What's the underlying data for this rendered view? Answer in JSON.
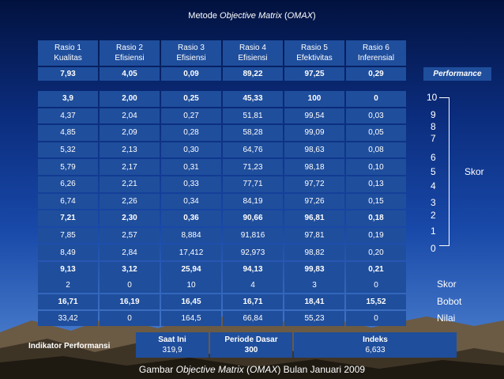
{
  "title_prefix": "Metode ",
  "title_italic": "Objective Matrix",
  "title_mid": " (",
  "title_abbr": "OMAX",
  "title_suffix": ")",
  "headers": [
    {
      "line1": "Rasio 1",
      "line2": "Kualitas"
    },
    {
      "line1": "Rasio 2",
      "line2": "Efisiensi"
    },
    {
      "line1": "Rasio 3",
      "line2": "Efisiensi"
    },
    {
      "line1": "Rasio 4",
      "line2": "Efisiensi"
    },
    {
      "line1": "Rasio 5",
      "line2": "Efektivitas"
    },
    {
      "line1": "Rasio 6",
      "line2": "Inferensial"
    }
  ],
  "performance": [
    "7,93",
    "4,05",
    "0,09",
    "89,22",
    "97,25",
    "0,29"
  ],
  "performance_label": "Performance",
  "score_rows": [
    {
      "bold": true,
      "values": [
        "3,9",
        "2,00",
        "0,25",
        "45,33",
        "100",
        "0"
      ]
    },
    {
      "bold": false,
      "values": [
        "4,37",
        "2,04",
        "0,27",
        "51,81",
        "99,54",
        "0,03"
      ]
    },
    {
      "bold": false,
      "values": [
        "4,85",
        "2,09",
        "0,28",
        "58,28",
        "99,09",
        "0,05"
      ]
    },
    {
      "bold": false,
      "values": [
        "5,32",
        "2,13",
        "0,30",
        "64,76",
        "98,63",
        "0,08"
      ]
    },
    {
      "bold": false,
      "values": [
        "5,79",
        "2,17",
        "0,31",
        "71,23",
        "98,18",
        "0,10"
      ]
    },
    {
      "bold": false,
      "values": [
        "6,26",
        "2,21",
        "0,33",
        "77,71",
        "97,72",
        "0,13"
      ]
    },
    {
      "bold": false,
      "values": [
        "6,74",
        "2,26",
        "0,34",
        "84,19",
        "97,26",
        "0,15"
      ]
    },
    {
      "bold": true,
      "values": [
        "7,21",
        "2,30",
        "0,36",
        "90,66",
        "96,81",
        "0,18"
      ]
    },
    {
      "bold": false,
      "values": [
        "7,85",
        "2,57",
        "8,884",
        "91,816",
        "97,81",
        "0,19"
      ]
    },
    {
      "bold": false,
      "values": [
        "8,49",
        "2,84",
        "17,412",
        "92,973",
        "98,82",
        "0,20"
      ]
    },
    {
      "bold": true,
      "values": [
        "9,13",
        "3,12",
        "25,94",
        "94,13",
        "99,83",
        "0,21"
      ]
    }
  ],
  "score_scale": [
    "10",
    "9",
    "8",
    "7",
    "6",
    "5",
    "4",
    "3",
    "2",
    "1",
    "0"
  ],
  "skor_label": "Skor",
  "bottom_rows": [
    {
      "label": "Skor",
      "bold": false,
      "values": [
        "2",
        "0",
        "10",
        "4",
        "3",
        "0"
      ]
    },
    {
      "label": "Bobot",
      "bold": true,
      "values": [
        "16,71",
        "16,19",
        "16,45",
        "16,71",
        "18,41",
        "15,52"
      ]
    },
    {
      "label": "Nilai",
      "bold": false,
      "values": [
        "33,42",
        "0",
        "164,5",
        "66,84",
        "55,23",
        "0"
      ]
    }
  ],
  "indicator": {
    "label": "Indikator Performansi",
    "saat_ini_label": "Saat Ini",
    "saat_ini_value": "319,9",
    "periode_label": "Periode Dasar",
    "periode_value": "300",
    "indeks_label": "Indeks",
    "indeks_value": "6,633"
  },
  "caption_prefix": "Gambar ",
  "caption_italic": "Objective Matrix",
  "caption_mid": " (",
  "caption_abbr": "OMAX",
  "caption_suffix": ") Bulan Januari 2009"
}
